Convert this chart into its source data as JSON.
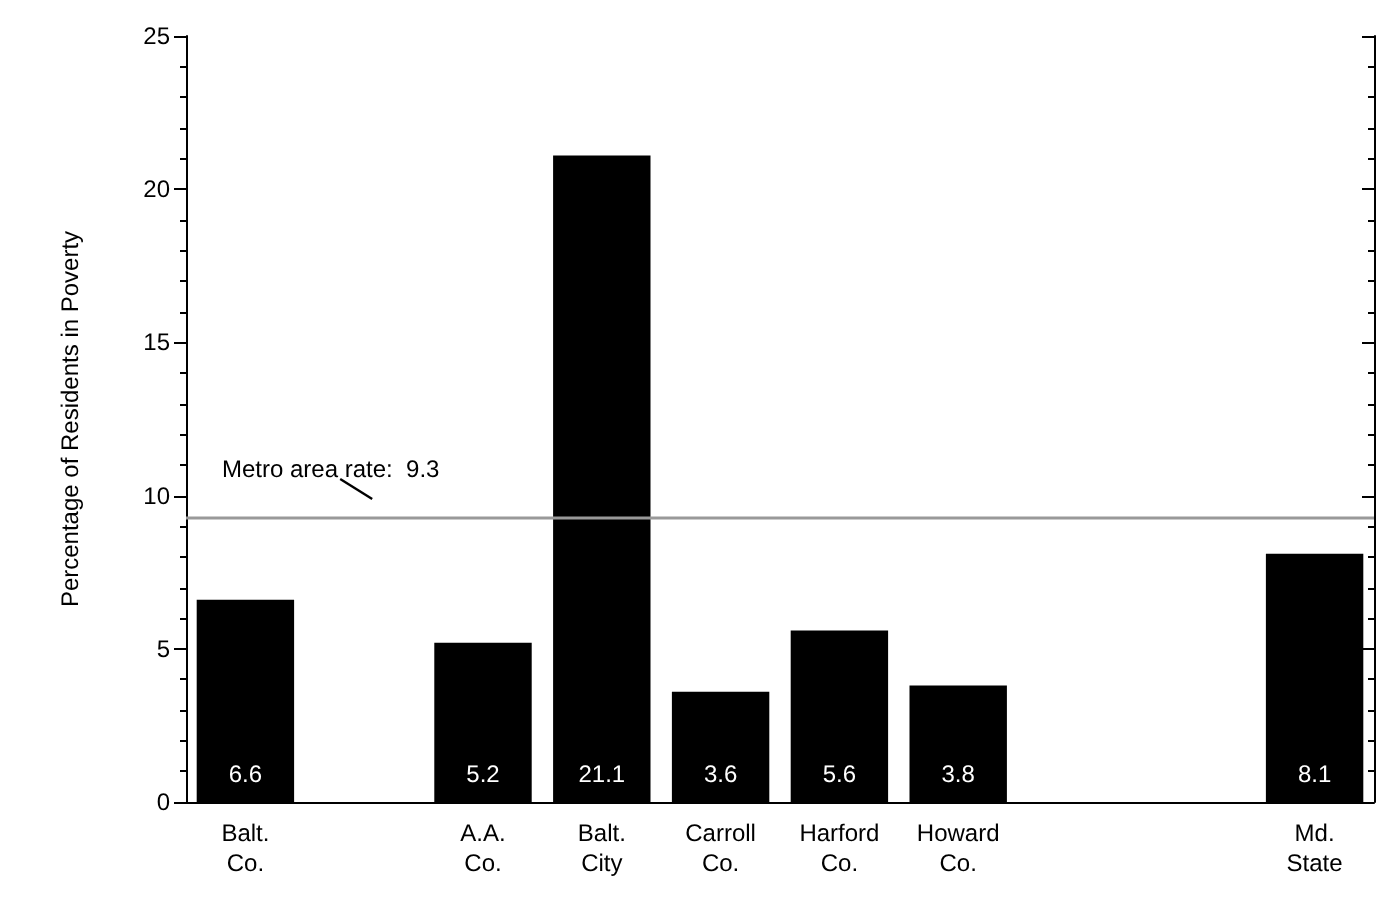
{
  "chart_data": {
    "type": "bar",
    "ylabel": "Percentage of Residents in Poverty",
    "categories": [
      "Balt. Co.",
      null,
      "A.A. Co.",
      "Balt. City",
      "Carroll Co.",
      "Harford Co.",
      "Howard Co.",
      null,
      null,
      "Md. State"
    ],
    "values": [
      6.6,
      null,
      5.2,
      21.1,
      3.6,
      5.6,
      3.8,
      null,
      null,
      8.1
    ],
    "color": "#000000",
    "data_labels": true,
    "ylim": [
      0,
      25
    ],
    "yticks": [
      0,
      5,
      10,
      15,
      20,
      25
    ],
    "grid": false,
    "ref_lines": [
      {
        "axis": "y",
        "value": 9.3,
        "label": "Metro area rate:  9.3",
        "color": "#999999"
      }
    ]
  }
}
